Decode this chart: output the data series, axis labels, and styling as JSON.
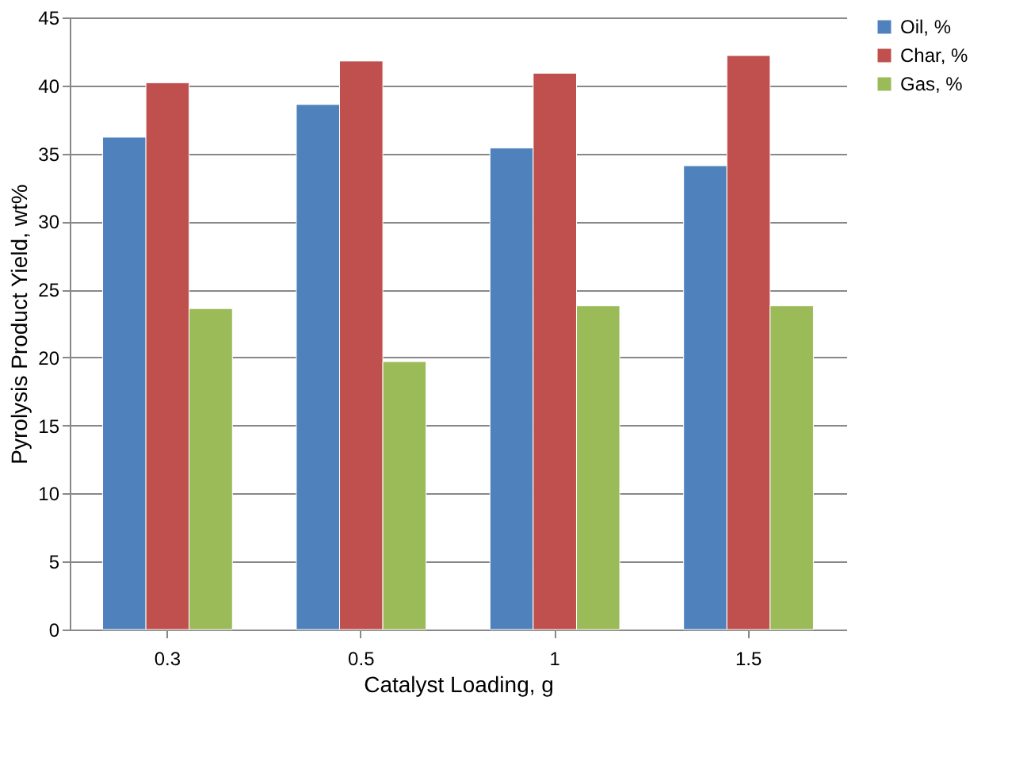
{
  "chart_data": {
    "type": "bar",
    "xlabel": "Catalyst Loading, g",
    "ylabel": "Pyrolysis Product Yield, wt%",
    "categories": [
      "0.3",
      "0.5",
      "1",
      "1.5"
    ],
    "series": [
      {
        "name": "Oil, %",
        "color": "#4f81bd",
        "values": [
          36.2,
          38.6,
          35.4,
          34.1
        ]
      },
      {
        "name": "Char, %",
        "color": "#c0504d",
        "values": [
          40.2,
          41.8,
          40.9,
          42.2
        ]
      },
      {
        "name": "Gas, %",
        "color": "#9bbb59",
        "values": [
          23.6,
          19.7,
          23.8,
          23.8
        ]
      }
    ],
    "ylim": [
      0,
      45
    ],
    "yticks": [
      0,
      5,
      10,
      15,
      20,
      25,
      30,
      35,
      40,
      45
    ],
    "grid": "y",
    "legend": "right"
  }
}
